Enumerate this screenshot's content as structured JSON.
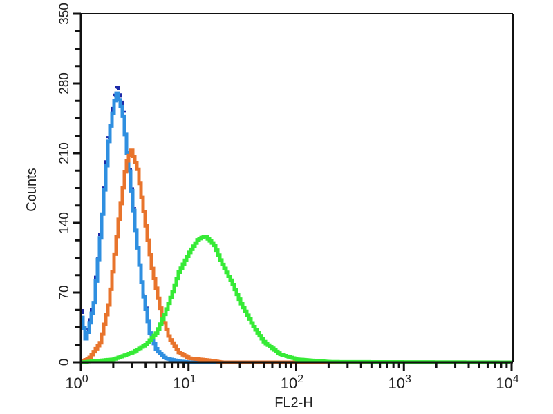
{
  "chart_data": {
    "type": "line",
    "title": "",
    "xlabel": "FL2-H",
    "ylabel": "Counts",
    "xscale": "log",
    "xlim": [
      1,
      10000
    ],
    "ylim": [
      0,
      350
    ],
    "x_ticks": [
      {
        "base": "10",
        "exp": "0"
      },
      {
        "base": "10",
        "exp": "1"
      },
      {
        "base": "10",
        "exp": "2"
      },
      {
        "base": "10",
        "exp": "3"
      },
      {
        "base": "10",
        "exp": "4"
      }
    ],
    "y_ticks": [
      "0",
      "70",
      "140",
      "210",
      "280",
      "350"
    ],
    "grid": false,
    "legend": "none",
    "series": [
      {
        "color": "#1c2aa8",
        "style": "dashed",
        "x": [
          1,
          1.1,
          1.3,
          1.5,
          1.8,
          2.1,
          2.4,
          2.8,
          3.2,
          3.7,
          4.3,
          5,
          6,
          8,
          10,
          10000
        ],
        "y": [
          52,
          24,
          62,
          132,
          232,
          278,
          256,
          190,
          130,
          74,
          30,
          12,
          4,
          1,
          0,
          0
        ]
      },
      {
        "color": "#2f8fe0",
        "style": "solid",
        "x": [
          1,
          1.1,
          1.3,
          1.5,
          1.8,
          2.1,
          2.4,
          2.8,
          3.2,
          3.7,
          4.3,
          5,
          6,
          8,
          10,
          10000
        ],
        "y": [
          45,
          22,
          58,
          128,
          228,
          272,
          252,
          188,
          128,
          72,
          30,
          12,
          4,
          1,
          0,
          0
        ]
      },
      {
        "color": "#e8742c",
        "style": "solid",
        "x": [
          1,
          1.2,
          1.5,
          1.8,
          2.2,
          2.6,
          2.9,
          3.3,
          3.8,
          4.5,
          5.5,
          6.5,
          8,
          10,
          15,
          20,
          10000
        ],
        "y": [
          0,
          5,
          20,
          60,
          140,
          200,
          213,
          195,
          150,
          95,
          50,
          25,
          10,
          4,
          2,
          0,
          0
        ]
      },
      {
        "color": "#36ea36",
        "style": "solid",
        "x": [
          1,
          2,
          3,
          4,
          5,
          6,
          7,
          8,
          10,
          12,
          14,
          17,
          20,
          25,
          30,
          40,
          50,
          70,
          100,
          200,
          10000
        ],
        "y": [
          0,
          3,
          10,
          18,
          30,
          50,
          70,
          90,
          110,
          123,
          127,
          118,
          100,
          80,
          60,
          35,
          20,
          8,
          3,
          0.5,
          0
        ]
      }
    ]
  }
}
